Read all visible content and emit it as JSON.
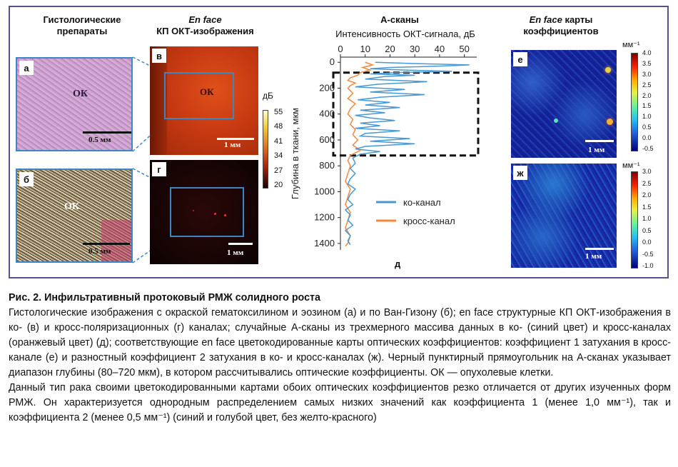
{
  "headers": {
    "histology": "Гистологические препараты",
    "enface_em": "En face",
    "enface_rest": "КП ОКТ-изображения",
    "ascans_title": "А-сканы",
    "ascans_axis": "Интенсивность ОКТ-сигнала, дБ",
    "coef_em": "En face",
    "coef_rest": "карты коэффициентов"
  },
  "panels": {
    "a": {
      "letter": "а",
      "label": "ОК",
      "scale": "0.5 мм"
    },
    "b": {
      "letter": "б",
      "label": "ОК",
      "scale": "0.5 мм"
    },
    "v": {
      "letter": "в",
      "label": "ОК",
      "scale": "1 мм"
    },
    "g": {
      "letter": "г",
      "scale": "1 мм"
    },
    "e": {
      "letter": "е",
      "scale": "1 мм"
    },
    "zh": {
      "letter": "ж",
      "scale": "1 мм"
    }
  },
  "db_colorbar": {
    "unit": "дБ",
    "ticks": [
      "55",
      "48",
      "41",
      "34",
      "27",
      "20"
    ]
  },
  "coef1_colorbar": {
    "unit": "мм⁻¹",
    "ticks": [
      "4.0",
      "3.5",
      "3.0",
      "2.5",
      "2.0",
      "1.5",
      "1.0",
      "0.5",
      "0.0",
      "-0.5"
    ]
  },
  "coef2_colorbar": {
    "unit": "мм⁻¹",
    "ticks": [
      "3.0",
      "2.5",
      "2.0",
      "1.5",
      "1.0",
      "0.5",
      "0.0",
      "-0.5",
      "-1.0"
    ]
  },
  "chart_data": {
    "type": "line",
    "panel_letter": "д",
    "title": "А-сканы",
    "xlabel": "Интенсивность ОКТ-сигнала, дБ",
    "ylabel": "Глубина в ткани, мкм",
    "xlim": [
      0,
      55
    ],
    "ylim": [
      1450,
      -40
    ],
    "xticks": [
      0,
      10,
      20,
      30,
      40,
      50
    ],
    "yticks": [
      0,
      200,
      400,
      600,
      800,
      1000,
      1200,
      1400
    ],
    "legend_position": "right",
    "dashed_rect": {
      "x": [
        0,
        55
      ],
      "y": [
        80,
        720
      ]
    },
    "series": [
      {
        "name": "ко-канал",
        "color": "#4a98d4",
        "depth": [
          0,
          10,
          20,
          30,
          40,
          50,
          60,
          70,
          80,
          90,
          100,
          110,
          130,
          150,
          170,
          190,
          210,
          230,
          250,
          270,
          290,
          310,
          330,
          350,
          370,
          390,
          410,
          430,
          450,
          470,
          490,
          510,
          530,
          550,
          570,
          590,
          610,
          630,
          650,
          670,
          690,
          710,
          740,
          780,
          820,
          860,
          900,
          940,
          980,
          1020,
          1060,
          1100,
          1140,
          1180,
          1220,
          1260,
          1300,
          1340,
          1380,
          1410
        ],
        "values": [
          14,
          30,
          52,
          40,
          20,
          12,
          26,
          45,
          22,
          12,
          30,
          18,
          10,
          35,
          15,
          6,
          26,
          12,
          34,
          16,
          7,
          20,
          10,
          24,
          8,
          18,
          6,
          12,
          22,
          8,
          16,
          6,
          24,
          10,
          8,
          28,
          12,
          30,
          10,
          6,
          16,
          8,
          5,
          6,
          4,
          6,
          4,
          3,
          6,
          4,
          3,
          5,
          2,
          4,
          3,
          5,
          2,
          4,
          3,
          4
        ]
      },
      {
        "name": "кросс-канал",
        "color": "#f08a3c",
        "depth": [
          0,
          20,
          40,
          60,
          80,
          100,
          120,
          140,
          160,
          180,
          200,
          240,
          280,
          320,
          360,
          400,
          440,
          480,
          520,
          560,
          600,
          640,
          680,
          720,
          760,
          800,
          860,
          920,
          980,
          1040,
          1100,
          1160,
          1220,
          1280,
          1340,
          1400,
          1420
        ],
        "values": [
          10,
          13,
          9,
          12,
          8,
          7,
          4,
          3,
          6,
          4,
          3,
          5,
          3,
          6,
          4,
          3,
          5,
          4,
          6,
          5,
          7,
          5,
          8,
          4,
          3,
          4,
          3,
          2,
          4,
          3,
          2,
          4,
          3,
          2,
          4,
          3,
          2
        ]
      }
    ]
  },
  "caption": {
    "title": "Рис. 2. Инфильтративный протоковый РМЖ солидного роста",
    "p1": "Гистологические изображения с окраской гематоксилином и эозином (а) и по Ван-Гизону (б); en face структурные КП ОКТ-изображения в ко- (в) и кросс-поляризационных (г) каналах; случайные А-сканы из трехмерного массива данных в ко- (синий цвет) и кросс-каналах (оранжевый цвет) (д); соответствующие en face цветокодированные карты оптических коэффициентов: коэффициент 1 затухания в кросс-канале (е) и разностный коэффициент 2 затухания в ко- и кросс-каналах (ж). Черный пунктирный прямоугольник на А-сканах указывает диапазон глубины (80–720 мкм), в котором рассчитывались оптические коэффициенты. ОК — опухолевые клетки.",
    "p2": "Данный тип рака своими цветокодированными картами обоих оптических коэффициентов резко отличается от других изученных форм РМЖ. Он характеризуется однородным распределением самых низких значений как коэффициента 1 (менее 1,0 мм⁻¹), так и коэффициента 2 (менее 0,5 мм⁻¹) (синий и голубой цвет, без желто-красного)"
  }
}
